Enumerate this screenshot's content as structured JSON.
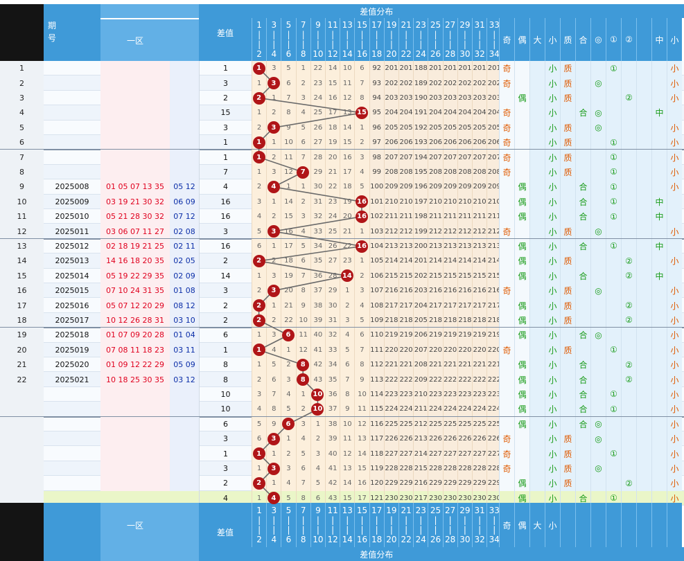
{
  "header": {
    "period_label": "期\n号",
    "zone1_label": "一区",
    "diff_label": "差值",
    "dist_label": "差值分布",
    "dist_cols_top": [
      "1",
      "3",
      "5",
      "7",
      "9",
      "11",
      "13",
      "15",
      "17",
      "19",
      "21",
      "23",
      "25",
      "27",
      "29",
      "31",
      "33"
    ],
    "dist_cols_bottom": [
      "2",
      "4",
      "6",
      "8",
      "10",
      "12",
      "14",
      "16",
      "18",
      "20",
      "22",
      "24",
      "26",
      "28",
      "30",
      "32",
      "34"
    ],
    "attr_labels": [
      "奇",
      "偶",
      "大",
      "小",
      "质",
      "合",
      "◎",
      "①",
      "②",
      "",
      "中",
      "小"
    ]
  },
  "footer": {
    "zone1_label": "一区",
    "diff_label": "差值",
    "dist_label": "差值分布",
    "attr_labels": [
      "奇",
      "偶",
      "大",
      "小",
      "",
      "",
      "",
      "",
      "",
      "",
      "",
      ""
    ]
  },
  "rows": [
    {
      "idx": "1",
      "period": "",
      "red": "",
      "blue": "",
      "diff": "1",
      "miss": [
        "1",
        "3",
        "5",
        "1",
        "22",
        "14",
        "10",
        "6",
        "92",
        "201",
        "201",
        "188",
        "201",
        "201",
        "201",
        "201",
        "201"
      ],
      "attrs": [
        "奇",
        "",
        "",
        "小",
        "质",
        "",
        "",
        "①",
        "",
        "",
        "",
        "小"
      ]
    },
    {
      "idx": "2",
      "period": "",
      "red": "",
      "blue": "",
      "diff": "3",
      "miss": [
        "1",
        "3",
        "6",
        "2",
        "23",
        "15",
        "11",
        "7",
        "93",
        "202",
        "202",
        "189",
        "202",
        "202",
        "202",
        "202",
        "202"
      ],
      "attrs": [
        "奇",
        "",
        "",
        "小",
        "质",
        "",
        "◎",
        "",
        "",
        "",
        "",
        "小"
      ]
    },
    {
      "idx": "3",
      "period": "",
      "red": "",
      "blue": "",
      "diff": "2",
      "miss": [
        "2",
        "1",
        "7",
        "3",
        "24",
        "16",
        "12",
        "8",
        "94",
        "203",
        "203",
        "190",
        "203",
        "203",
        "203",
        "203",
        "203"
      ],
      "attrs": [
        "",
        "偶",
        "",
        "小",
        "质",
        "",
        "",
        "",
        "②",
        "",
        "",
        "小"
      ]
    },
    {
      "idx": "4",
      "period": "",
      "red": "",
      "blue": "",
      "diff": "15",
      "miss": [
        "1",
        "2",
        "8",
        "4",
        "25",
        "17",
        "13",
        "15",
        "95",
        "204",
        "204",
        "191",
        "204",
        "204",
        "204",
        "204",
        "204"
      ],
      "attrs": [
        "奇",
        "",
        "",
        "小",
        "",
        "合",
        "◎",
        "",
        "",
        "",
        "中",
        ""
      ]
    },
    {
      "idx": "5",
      "period": "",
      "red": "",
      "blue": "",
      "diff": "3",
      "miss": [
        "2",
        "3",
        "9",
        "5",
        "26",
        "18",
        "14",
        "1",
        "96",
        "205",
        "205",
        "192",
        "205",
        "205",
        "205",
        "205",
        "205"
      ],
      "attrs": [
        "奇",
        "",
        "",
        "小",
        "质",
        "",
        "◎",
        "",
        "",
        "",
        "",
        "小"
      ]
    },
    {
      "idx": "6",
      "period": "",
      "red": "",
      "blue": "",
      "diff": "1",
      "miss": [
        "1",
        "1",
        "10",
        "6",
        "27",
        "19",
        "15",
        "2",
        "97",
        "206",
        "206",
        "193",
        "206",
        "206",
        "206",
        "206",
        "206"
      ],
      "attrs": [
        "奇",
        "",
        "",
        "小",
        "质",
        "",
        "",
        "①",
        "",
        "",
        "",
        "小"
      ]
    },
    {
      "idx": "7",
      "period": "",
      "red": "",
      "blue": "",
      "diff": "1",
      "miss": [
        "1",
        "2",
        "11",
        "7",
        "28",
        "20",
        "16",
        "3",
        "98",
        "207",
        "207",
        "194",
        "207",
        "207",
        "207",
        "207",
        "207"
      ],
      "attrs": [
        "奇",
        "",
        "",
        "小",
        "质",
        "",
        "",
        "①",
        "",
        "",
        "",
        "小"
      ]
    },
    {
      "idx": "8",
      "period": "",
      "red": "",
      "blue": "",
      "diff": "7",
      "miss": [
        "1",
        "3",
        "12",
        "7",
        "29",
        "21",
        "17",
        "4",
        "99",
        "208",
        "208",
        "195",
        "208",
        "208",
        "208",
        "208",
        "208"
      ],
      "attrs": [
        "奇",
        "",
        "",
        "小",
        "质",
        "",
        "",
        "①",
        "",
        "",
        "",
        "小"
      ]
    },
    {
      "idx": "9",
      "period": "2025008",
      "red": "01 05 07 13 35",
      "blue": "05 12",
      "diff": "4",
      "miss": [
        "2",
        "4",
        "1",
        "1",
        "30",
        "22",
        "18",
        "5",
        "100",
        "209",
        "209",
        "196",
        "209",
        "209",
        "209",
        "209",
        "209"
      ],
      "attrs": [
        "",
        "偶",
        "",
        "小",
        "",
        "合",
        "",
        "①",
        "",
        "",
        "",
        "小"
      ]
    },
    {
      "idx": "10",
      "period": "2025009",
      "red": "03 19 21 30 32",
      "blue": "06 09",
      "diff": "16",
      "miss": [
        "3",
        "1",
        "14",
        "2",
        "31",
        "23",
        "19",
        "16",
        "101",
        "210",
        "210",
        "197",
        "210",
        "210",
        "210",
        "210",
        "210"
      ],
      "attrs": [
        "",
        "偶",
        "",
        "小",
        "",
        "合",
        "",
        "①",
        "",
        "",
        "中",
        ""
      ]
    },
    {
      "idx": "11",
      "period": "2025010",
      "red": "05 21 28 30 32",
      "blue": "07 12",
      "diff": "16",
      "miss": [
        "4",
        "2",
        "15",
        "3",
        "32",
        "24",
        "20",
        "16",
        "102",
        "211",
        "211",
        "198",
        "211",
        "211",
        "211",
        "211",
        "211"
      ],
      "attrs": [
        "",
        "偶",
        "",
        "小",
        "",
        "合",
        "",
        "①",
        "",
        "",
        "中",
        ""
      ]
    },
    {
      "idx": "12",
      "period": "2025011",
      "red": "03 06 07 11 27",
      "blue": "02 08",
      "diff": "3",
      "miss": [
        "5",
        "3",
        "16",
        "4",
        "33",
        "25",
        "21",
        "1",
        "103",
        "212",
        "212",
        "199",
        "212",
        "212",
        "212",
        "212",
        "212"
      ],
      "attrs": [
        "奇",
        "",
        "",
        "小",
        "质",
        "",
        "◎",
        "",
        "",
        "",
        "",
        "小"
      ]
    },
    {
      "idx": "13",
      "period": "2025012",
      "red": "02 18 19 21 25",
      "blue": "02 11",
      "diff": "16",
      "miss": [
        "6",
        "1",
        "17",
        "5",
        "34",
        "26",
        "22",
        "16",
        "104",
        "213",
        "213",
        "200",
        "213",
        "213",
        "213",
        "213",
        "213"
      ],
      "attrs": [
        "",
        "偶",
        "",
        "小",
        "",
        "合",
        "",
        "①",
        "",
        "",
        "中",
        ""
      ]
    },
    {
      "idx": "14",
      "period": "2025013",
      "red": "14 16 18 20 35",
      "blue": "02 05",
      "diff": "2",
      "miss": [
        "7",
        "2",
        "18",
        "6",
        "35",
        "27",
        "23",
        "1",
        "105",
        "214",
        "214",
        "201",
        "214",
        "214",
        "214",
        "214",
        "214"
      ],
      "attrs": [
        "",
        "偶",
        "",
        "小",
        "质",
        "",
        "",
        "",
        "②",
        "",
        "",
        "小"
      ]
    },
    {
      "idx": "15",
      "period": "2025014",
      "red": "05 19 22 29 35",
      "blue": "02 09",
      "diff": "14",
      "miss": [
        "1",
        "3",
        "19",
        "7",
        "36",
        "28",
        "14",
        "2",
        "106",
        "215",
        "215",
        "202",
        "215",
        "215",
        "215",
        "215",
        "215"
      ],
      "attrs": [
        "",
        "偶",
        "",
        "小",
        "",
        "合",
        "",
        "",
        "②",
        "",
        "中",
        ""
      ]
    },
    {
      "idx": "16",
      "period": "2025015",
      "red": "07 10 24 31 35",
      "blue": "01 08",
      "diff": "3",
      "miss": [
        "2",
        "3",
        "20",
        "8",
        "37",
        "29",
        "1",
        "3",
        "107",
        "216",
        "216",
        "203",
        "216",
        "216",
        "216",
        "216",
        "216"
      ],
      "attrs": [
        "奇",
        "",
        "",
        "小",
        "质",
        "",
        "◎",
        "",
        "",
        "",
        "",
        "小"
      ]
    },
    {
      "idx": "17",
      "period": "2025016",
      "red": "05 07 12 20 29",
      "blue": "08 12",
      "diff": "2",
      "miss": [
        "2",
        "1",
        "21",
        "9",
        "38",
        "30",
        "2",
        "4",
        "108",
        "217",
        "217",
        "204",
        "217",
        "217",
        "217",
        "217",
        "217"
      ],
      "attrs": [
        "",
        "偶",
        "",
        "小",
        "质",
        "",
        "",
        "",
        "②",
        "",
        "",
        "小"
      ]
    },
    {
      "idx": "18",
      "period": "2025017",
      "red": "10 12 26 28 31",
      "blue": "03 10",
      "diff": "2",
      "miss": [
        "2",
        "2",
        "22",
        "10",
        "39",
        "31",
        "3",
        "5",
        "109",
        "218",
        "218",
        "205",
        "218",
        "218",
        "218",
        "218",
        "218"
      ],
      "attrs": [
        "",
        "偶",
        "",
        "小",
        "质",
        "",
        "",
        "",
        "②",
        "",
        "",
        "小"
      ]
    },
    {
      "idx": "19",
      "period": "2025018",
      "red": "01 07 09 20 28",
      "blue": "01 04",
      "diff": "6",
      "miss": [
        "1",
        "3",
        "6",
        "11",
        "40",
        "32",
        "4",
        "6",
        "110",
        "219",
        "219",
        "206",
        "219",
        "219",
        "219",
        "219",
        "219"
      ],
      "attrs": [
        "",
        "偶",
        "",
        "小",
        "",
        "合",
        "◎",
        "",
        "",
        "",
        "",
        "小"
      ]
    },
    {
      "idx": "20",
      "period": "2025019",
      "red": "07 08 11 18 23",
      "blue": "03 11",
      "diff": "1",
      "miss": [
        "1",
        "4",
        "1",
        "12",
        "41",
        "33",
        "5",
        "7",
        "111",
        "220",
        "220",
        "207",
        "220",
        "220",
        "220",
        "220",
        "220"
      ],
      "attrs": [
        "奇",
        "",
        "",
        "小",
        "质",
        "",
        "",
        "①",
        "",
        "",
        "",
        "小"
      ]
    },
    {
      "idx": "21",
      "period": "2025020",
      "red": "01 09 12 22 29",
      "blue": "05 09",
      "diff": "8",
      "miss": [
        "1",
        "5",
        "2",
        "8",
        "42",
        "34",
        "6",
        "8",
        "112",
        "221",
        "221",
        "208",
        "221",
        "221",
        "221",
        "221",
        "221"
      ],
      "attrs": [
        "",
        "偶",
        "",
        "小",
        "",
        "合",
        "",
        "",
        "②",
        "",
        "",
        "小"
      ]
    },
    {
      "idx": "22",
      "period": "2025021",
      "red": "10 18 25 30 35",
      "blue": "03 12",
      "diff": "8",
      "miss": [
        "2",
        "6",
        "3",
        "8",
        "43",
        "35",
        "7",
        "9",
        "113",
        "222",
        "222",
        "209",
        "222",
        "222",
        "222",
        "222",
        "222"
      ],
      "attrs": [
        "",
        "偶",
        "",
        "小",
        "",
        "合",
        "",
        "",
        "②",
        "",
        "",
        "小"
      ]
    },
    {
      "idx": "",
      "period": "",
      "red": "",
      "blue": "",
      "diff": "10",
      "miss": [
        "3",
        "7",
        "4",
        "1",
        "10",
        "36",
        "8",
        "10",
        "114",
        "223",
        "223",
        "210",
        "223",
        "223",
        "223",
        "223",
        "223"
      ],
      "attrs": [
        "",
        "偶",
        "",
        "小",
        "",
        "合",
        "",
        "①",
        "",
        "",
        "",
        "小"
      ]
    },
    {
      "idx": "",
      "period": "",
      "red": "",
      "blue": "",
      "diff": "10",
      "miss": [
        "4",
        "8",
        "5",
        "2",
        "10",
        "37",
        "9",
        "11",
        "115",
        "224",
        "224",
        "211",
        "224",
        "224",
        "224",
        "224",
        "224"
      ],
      "attrs": [
        "",
        "偶",
        "",
        "小",
        "",
        "合",
        "",
        "①",
        "",
        "",
        "",
        "小"
      ]
    },
    {
      "idx": "",
      "period": "",
      "red": "",
      "blue": "",
      "diff": "6",
      "miss": [
        "5",
        "9",
        "6",
        "3",
        "1",
        "38",
        "10",
        "12",
        "116",
        "225",
        "225",
        "212",
        "225",
        "225",
        "225",
        "225",
        "225"
      ],
      "attrs": [
        "",
        "偶",
        "",
        "小",
        "",
        "合",
        "◎",
        "",
        "",
        "",
        "",
        "小"
      ]
    },
    {
      "idx": "",
      "period": "",
      "red": "",
      "blue": "",
      "diff": "3",
      "miss": [
        "6",
        "3",
        "1",
        "4",
        "2",
        "39",
        "11",
        "13",
        "117",
        "226",
        "226",
        "213",
        "226",
        "226",
        "226",
        "226",
        "226"
      ],
      "attrs": [
        "奇",
        "",
        "",
        "小",
        "质",
        "",
        "◎",
        "",
        "",
        "",
        "",
        "小"
      ]
    },
    {
      "idx": "",
      "period": "",
      "red": "",
      "blue": "",
      "diff": "1",
      "miss": [
        "1",
        "1",
        "2",
        "5",
        "3",
        "40",
        "12",
        "14",
        "118",
        "227",
        "227",
        "214",
        "227",
        "227",
        "227",
        "227",
        "227"
      ],
      "attrs": [
        "奇",
        "",
        "",
        "小",
        "质",
        "",
        "",
        "①",
        "",
        "",
        "",
        "小"
      ]
    },
    {
      "idx": "",
      "period": "",
      "red": "",
      "blue": "",
      "diff": "3",
      "miss": [
        "1",
        "3",
        "3",
        "6",
        "4",
        "41",
        "13",
        "15",
        "119",
        "228",
        "228",
        "215",
        "228",
        "228",
        "228",
        "228",
        "228"
      ],
      "attrs": [
        "奇",
        "",
        "",
        "小",
        "质",
        "",
        "◎",
        "",
        "",
        "",
        "",
        "小"
      ]
    },
    {
      "idx": "",
      "period": "",
      "red": "",
      "blue": "",
      "diff": "2",
      "miss": [
        "2",
        "1",
        "4",
        "7",
        "5",
        "42",
        "14",
        "16",
        "120",
        "229",
        "229",
        "216",
        "229",
        "229",
        "229",
        "229",
        "229"
      ],
      "attrs": [
        "",
        "偶",
        "",
        "小",
        "质",
        "",
        "",
        "",
        "②",
        "",
        "",
        "小"
      ]
    },
    {
      "idx": "",
      "period": "",
      "red": "",
      "blue": "",
      "diff": "4",
      "miss": [
        "1",
        "4",
        "5",
        "8",
        "6",
        "43",
        "15",
        "17",
        "121",
        "230",
        "230",
        "217",
        "230",
        "230",
        "230",
        "230",
        "230"
      ],
      "attrs": [
        "",
        "偶",
        "",
        "小",
        "",
        "合",
        "",
        "①",
        "",
        "",
        "",
        "小"
      ]
    }
  ]
}
